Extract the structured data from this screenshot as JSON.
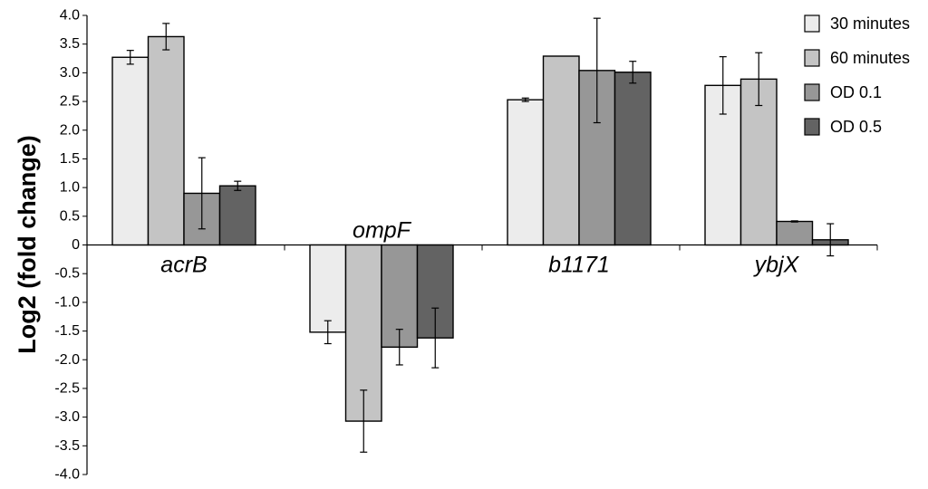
{
  "chart_data": {
    "type": "bar",
    "title": "",
    "xlabel": "",
    "ylabel": "Log2 (fold change)",
    "ylim": [
      -4.0,
      4.0
    ],
    "yticks": [
      "4.0",
      "3.5",
      "3.0",
      "2.5",
      "2.0",
      "1.5",
      "1.0",
      "0.5",
      "0",
      "-0.5",
      "-1.0",
      "-1.5",
      "-2.0",
      "-2.5",
      "-3.0",
      "-3.5",
      "-4.0"
    ],
    "ytick_values": [
      4.0,
      3.5,
      3.0,
      2.5,
      2.0,
      1.5,
      1.0,
      0.5,
      0,
      -0.5,
      -1.0,
      -1.5,
      -2.0,
      -2.5,
      -3.0,
      -3.5,
      -4.0
    ],
    "categories": [
      "acrB",
      "ompF",
      "b1171",
      "ybjX"
    ],
    "category_label_position": [
      "below",
      "above",
      "below",
      "below"
    ],
    "grid": false,
    "legend": "top-right",
    "series": [
      {
        "name": "30 minutes",
        "color": "#ececec",
        "values": [
          3.27,
          -1.52,
          2.53,
          2.78
        ],
        "errors": [
          0.12,
          0.2,
          0.03,
          0.5
        ]
      },
      {
        "name": "60 minutes",
        "color": "#c4c4c4",
        "values": [
          3.63,
          -3.07,
          3.29,
          2.89
        ],
        "errors": [
          0.23,
          0.54,
          null,
          0.46
        ]
      },
      {
        "name": "OD 0.1",
        "color": "#979797",
        "values": [
          0.9,
          -1.78,
          3.04,
          0.41
        ],
        "errors": [
          0.62,
          0.31,
          0.91,
          0.01
        ]
      },
      {
        "name": "OD 0.5",
        "color": "#636363",
        "values": [
          1.03,
          -1.62,
          3.01,
          0.09
        ],
        "errors": [
          0.08,
          0.52,
          0.19,
          0.28
        ]
      }
    ]
  }
}
